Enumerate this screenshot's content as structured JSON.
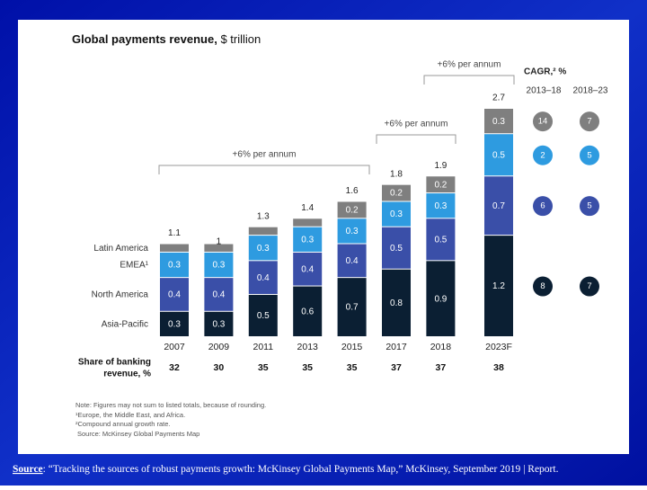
{
  "chart_data": {
    "type": "stacked_bar",
    "title": "Global payments revenue,",
    "unit": "$ trillion",
    "categories": [
      "2007",
      "2009",
      "2011",
      "2013",
      "2015",
      "2017",
      "2018",
      "2023F"
    ],
    "totals": [
      1.1,
      1.0,
      1.3,
      1.4,
      1.6,
      1.8,
      1.9,
      2.7
    ],
    "series": [
      {
        "name": "Asia-Pacific",
        "color": "#0b1f33",
        "values": [
          0.3,
          0.3,
          0.5,
          0.6,
          0.7,
          0.8,
          0.9,
          1.2
        ],
        "cagr": [
          8,
          7
        ]
      },
      {
        "name": "North America",
        "color": "#3a4fa8",
        "values": [
          0.4,
          0.4,
          0.4,
          0.4,
          0.4,
          0.5,
          0.5,
          0.7
        ],
        "cagr": [
          6,
          5
        ]
      },
      {
        "name": "EMEA¹",
        "color": "#2e9be0",
        "values": [
          0.3,
          0.3,
          0.3,
          0.3,
          0.3,
          0.3,
          0.3,
          0.5
        ],
        "cagr": [
          2,
          5
        ]
      },
      {
        "name": "Latin America",
        "color": "#7f7f7f",
        "values": [
          0.1,
          0.1,
          0.1,
          0.1,
          0.2,
          0.2,
          0.2,
          0.3
        ],
        "value_labels": [
          null,
          null,
          null,
          null,
          "0.2",
          "0.2",
          "0.2",
          "0.3"
        ],
        "cagr": [
          14,
          7
        ]
      }
    ],
    "growth_labels": [
      "+6% per annum",
      "+6% per annum",
      "+6% per annum"
    ],
    "cagr_title": "CAGR,² %",
    "cagr_periods": [
      "2013–18",
      "2018–23"
    ],
    "share_label": [
      "Share of banking",
      "revenue, %"
    ],
    "share_values": [
      32,
      30,
      35,
      35,
      35,
      37,
      37,
      38
    ],
    "notes": [
      "Note: Figures may not sum to listed totals, because of rounding.",
      "¹Europe, the Middle East, and Africa.",
      "²Compound annual growth rate.",
      "Source: McKinsey Global Payments Map"
    ]
  },
  "footer": {
    "source_label": "Source",
    "source_text": ": “Tracking the sources of robust payments growth: McKinsey Global Payments Map,” McKinsey, September 2019 | Report."
  }
}
